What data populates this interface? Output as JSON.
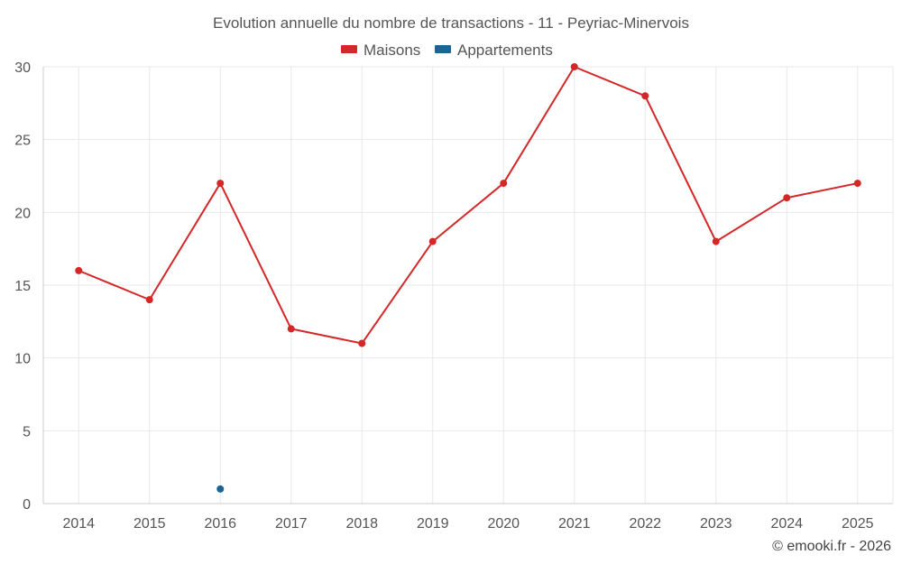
{
  "chart_data": {
    "type": "line",
    "title": "Evolution annuelle du nombre de transactions - 11 - Peyriac-Minervois",
    "categories": [
      "2014",
      "2015",
      "2016",
      "2017",
      "2018",
      "2019",
      "2020",
      "2021",
      "2022",
      "2023",
      "2024",
      "2025"
    ],
    "series": [
      {
        "name": "Maisons",
        "color": "#d62728",
        "values": [
          16,
          14,
          22,
          12,
          11,
          18,
          22,
          30,
          28,
          18,
          21,
          22
        ]
      },
      {
        "name": "Appartements",
        "color": "#1a6496",
        "values": [
          null,
          null,
          1,
          null,
          null,
          null,
          null,
          null,
          null,
          null,
          null,
          null
        ]
      }
    ],
    "ylim": [
      0,
      30
    ],
    "yticks": [
      0,
      5,
      10,
      15,
      20,
      25,
      30
    ],
    "xlabel": "",
    "ylabel": "",
    "legend_position": "top-center",
    "grid": true
  },
  "credit": "© emooki.fr - 2026"
}
